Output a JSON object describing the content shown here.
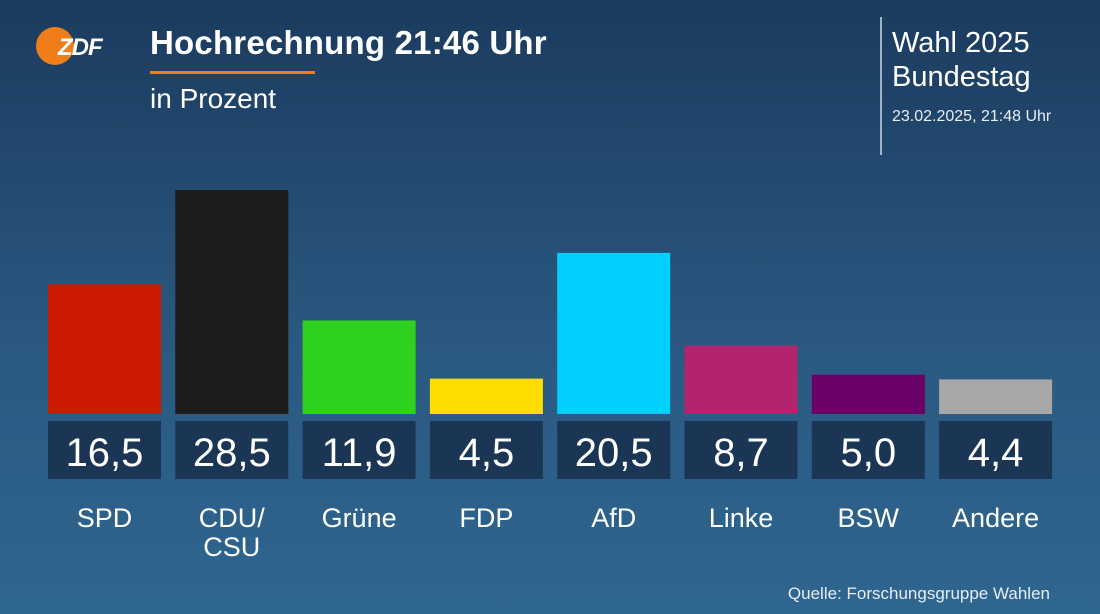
{
  "header": {
    "logo_text": "ZDF",
    "title": "Hochrechnung 21:46 Uhr",
    "subtitle": "in Prozent"
  },
  "info": {
    "election_line1": "Wahl 2025",
    "election_line2": "Bundestag",
    "datetime": "23.02.2025, 21:48 Uhr"
  },
  "source": "Quelle: Forschungsgruppe Wahlen",
  "colors": {
    "accent": "#ef7d1a",
    "value_box": "#1b3655"
  },
  "chart_data": {
    "type": "bar",
    "categories": [
      [
        "SPD"
      ],
      [
        "CDU/",
        "CSU"
      ],
      [
        "Grüne"
      ],
      [
        "FDP"
      ],
      [
        "AfD"
      ],
      [
        "Linke"
      ],
      [
        "BSW"
      ],
      [
        "Andere"
      ]
    ],
    "values": [
      16.5,
      28.5,
      11.9,
      4.5,
      20.5,
      8.7,
      5.0,
      4.4
    ],
    "value_labels": [
      "16,5",
      "28,5",
      "11,9",
      "4,5",
      "20,5",
      "8,7",
      "5,0",
      "4,4"
    ],
    "bar_colors": [
      "#cc1a00",
      "#1c1c1c",
      "#2ed11e",
      "#ffdd00",
      "#00cfff",
      "#b2246d",
      "#6b0068",
      "#a8a8a8"
    ],
    "ylim": [
      0,
      28.5
    ]
  }
}
